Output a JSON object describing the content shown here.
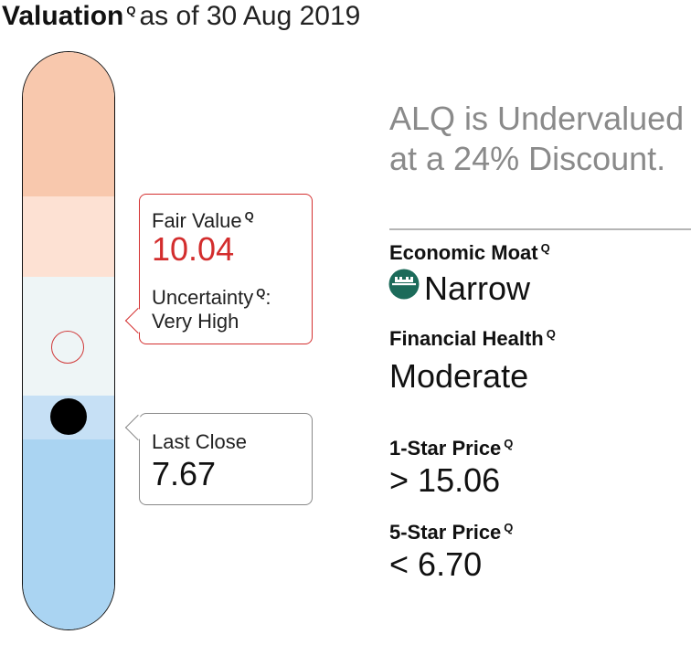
{
  "header": {
    "title": "Valuation",
    "subtitle": "as of 30 Aug 2019"
  },
  "bar": {
    "colors": {
      "band1": "#f8c8ad",
      "band2": "#fde1d3",
      "band3": "#eef5f6",
      "band4": "#c6e0f5",
      "band5": "#aad4f2"
    }
  },
  "fair_value": {
    "label": "Fair Value",
    "value": "10.04",
    "uncertainty_label": "Uncertainty",
    "uncertainty_colon": ":",
    "uncertainty_value": "Very High",
    "accent": "#d32d2d"
  },
  "last_close": {
    "label": "Last Close",
    "value": "7.67"
  },
  "summary": {
    "line1": "ALQ is Undervalued",
    "line2": "at a 24% Discount."
  },
  "economic_moat": {
    "label": "Economic Moat",
    "value": "Narrow",
    "icon": "moat-castle-icon",
    "icon_color": "#1c6b5a"
  },
  "financial_health": {
    "label": "Financial Health",
    "value": "Moderate"
  },
  "one_star": {
    "label": "1-Star Price",
    "symbol": ">",
    "value": "15.06"
  },
  "five_star": {
    "label": "5-Star Price",
    "symbol": "<",
    "value": "6.70"
  },
  "info_icon": "Q"
}
